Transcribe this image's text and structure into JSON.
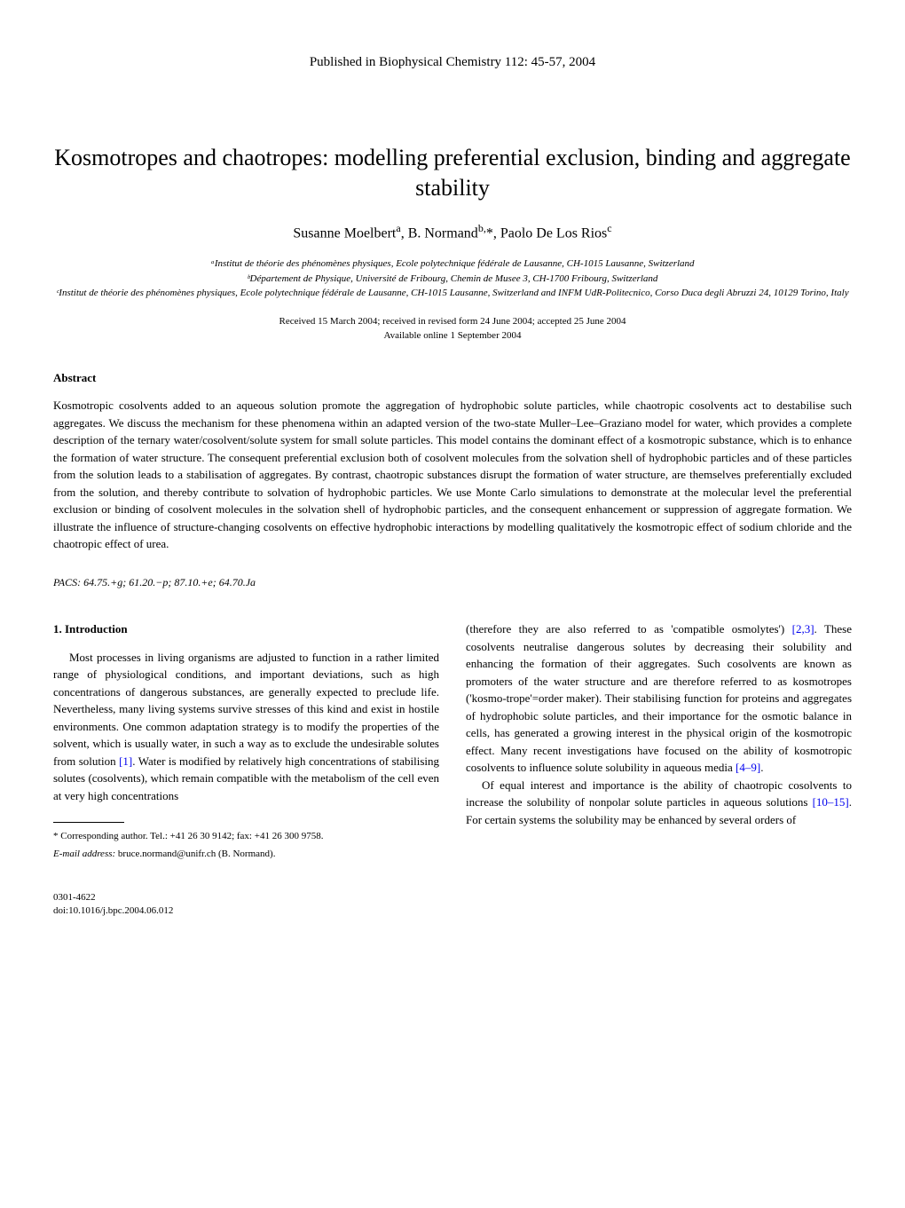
{
  "publication_header": "Published in Biophysical Chemistry 112: 45-57, 2004",
  "title": "Kosmotropes and chaotropes: modelling preferential exclusion, binding and aggregate stability",
  "authors_html": "Susanne Moelbert<sup>a</sup>, B. Normand<sup>b,</sup>*, Paolo De Los Rios<sup>c</sup>",
  "affiliations": [
    "ᵃInstitut de théorie des phénomènes physiques, Ecole polytechnique fédérale de Lausanne, CH-1015 Lausanne, Switzerland",
    "ᵇDépartement de Physique, Université de Fribourg, Chemin de Musee 3, CH-1700 Fribourg, Switzerland",
    "ᶜInstitut de théorie des phénomènes physiques, Ecole polytechnique fédérale de Lausanne, CH-1015 Lausanne, Switzerland and INFM UdR-Politecnico, Corso Duca degli Abruzzi 24, 10129 Torino, Italy"
  ],
  "dates": [
    "Received 15 March 2004; received in revised form 24 June 2004; accepted 25 June 2004",
    "Available online 1 September 2004"
  ],
  "abstract_label": "Abstract",
  "abstract_text": "Kosmotropic cosolvents added to an aqueous solution promote the aggregation of hydrophobic solute particles, while chaotropic cosolvents act to destabilise such aggregates. We discuss the mechanism for these phenomena within an adapted version of the two-state Muller–Lee–Graziano model for water, which provides a complete description of the ternary water/cosolvent/solute system for small solute particles. This model contains the dominant effect of a kosmotropic substance, which is to enhance the formation of water structure. The consequent preferential exclusion both of cosolvent molecules from the solvation shell of hydrophobic particles and of these particles from the solution leads to a stabilisation of aggregates. By contrast, chaotropic substances disrupt the formation of water structure, are themselves preferentially excluded from the solution, and thereby contribute to solvation of hydrophobic particles. We use Monte Carlo simulations to demonstrate at the molecular level the preferential exclusion or binding of cosolvent molecules in the solvation shell of hydrophobic particles, and the consequent enhancement or suppression of aggregate formation. We illustrate the influence of structure-changing cosolvents on effective hydrophobic interactions by modelling qualitatively the kosmotropic effect of sodium chloride and the chaotropic effect of urea.",
  "pacs_label": "PACS:",
  "pacs_codes": "64.75.+g; 61.20.−p; 87.10.+e; 64.70.Ja",
  "section_heading": "1. Introduction",
  "col1_p1": "Most processes in living organisms are adjusted to function in a rather limited range of physiological conditions, and important deviations, such as high concentrations of dangerous substances, are generally expected to preclude life. Nevertheless, many living systems survive stresses of this kind and exist in hostile environments. One common adaptation strategy is to modify the properties of the solvent, which is usually water, in such a way as to exclude the undesirable solutes from solution ",
  "col1_ref1": "[1]",
  "col1_p1_cont": ". Water is modified by relatively high concentrations of stabilising solutes (cosolvents), which remain compatible with the metabolism of the cell even at very high concentrations",
  "footnote_corr": "* Corresponding author. Tel.: +41 26 30 9142; fax: +41 26 300 9758.",
  "footnote_email_label": "E-mail address:",
  "footnote_email": "bruce.normand@unifr.ch (B. Normand).",
  "col2_p1_start": "(therefore they are also referred to as 'compatible osmolytes') ",
  "col2_ref1": "[2,3]",
  "col2_p1_mid": ". These cosolvents neutralise dangerous solutes by decreasing their solubility and enhancing the formation of their aggregates. Such cosolvents are known as promoters of the water structure and are therefore referred to as kosmotropes ('kosmo-trope'=order maker). Their stabilising function for proteins and aggregates of hydrophobic solute particles, and their importance for the osmotic balance in cells, has generated a growing interest in the physical origin of the kosmotropic effect. Many recent investigations have focused on the ability of kosmotropic cosolvents to influence solute solubility in aqueous media ",
  "col2_ref2": "[4–9]",
  "col2_p1_end": ".",
  "col2_p2_start": "Of equal interest and importance is the ability of chaotropic cosolvents to increase the solubility of nonpolar solute particles in aqueous solutions ",
  "col2_ref3": "[10–15]",
  "col2_p2_end": ". For certain systems the solubility may be enhanced by several orders of",
  "footer_issn": "0301-4622",
  "footer_doi": "doi:10.1016/j.bpc.2004.06.012"
}
